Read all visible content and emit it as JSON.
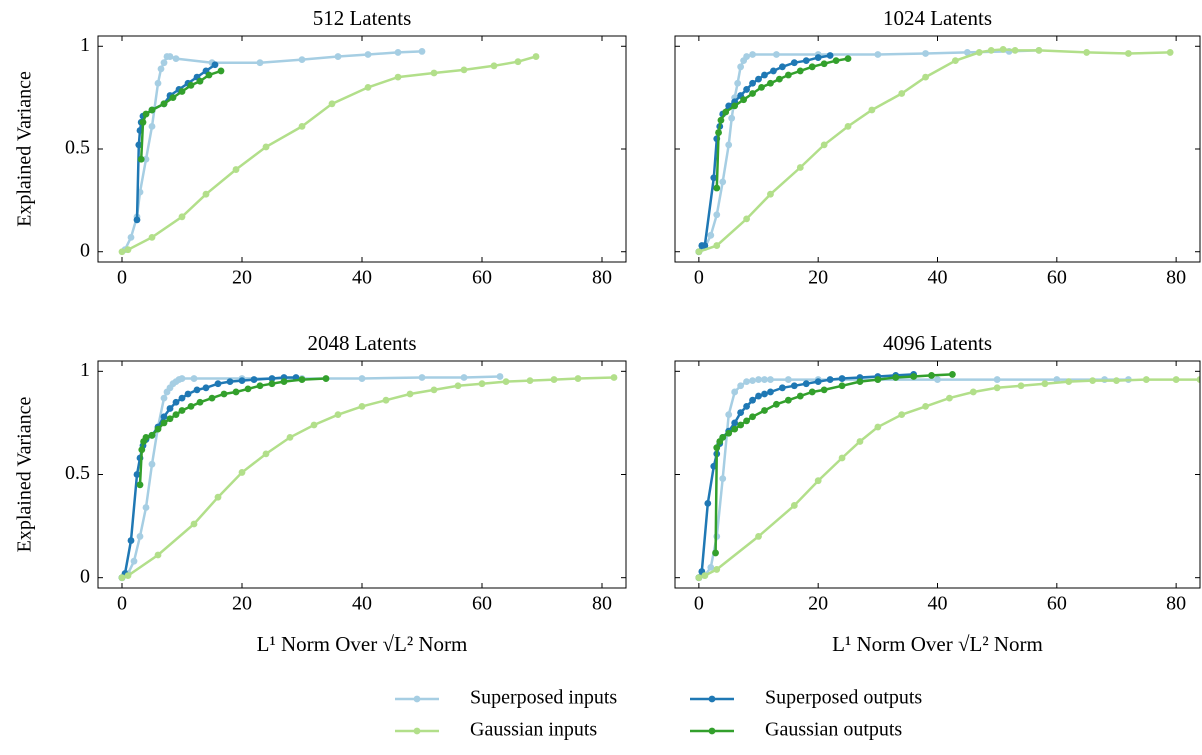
{
  "chart_data": [
    {
      "type": "line",
      "title": "512 Latents",
      "ylabel": "Explained Variance",
      "xlim": [
        -4,
        84
      ],
      "ylim": [
        -0.05,
        1.05
      ],
      "xticks": [
        0,
        20,
        40,
        60,
        80
      ],
      "yticks": [
        0,
        0.5,
        1
      ],
      "show_ytick_labels": true,
      "series": [
        {
          "name": "Superposed inputs",
          "color": "#a6cee3",
          "x": [
            0.5,
            1.5,
            2.5,
            3,
            4,
            5,
            6,
            6.5,
            7,
            7.5,
            8,
            9,
            15,
            23,
            30,
            36,
            41,
            46,
            50
          ],
          "values": [
            0.01,
            0.07,
            0.17,
            0.29,
            0.45,
            0.61,
            0.82,
            0.89,
            0.92,
            0.95,
            0.95,
            0.94,
            0.92,
            0.92,
            0.935,
            0.95,
            0.96,
            0.97,
            0.975
          ]
        },
        {
          "name": "Superposed outputs",
          "color": "#1f78b4",
          "x": [
            2.5,
            2.8,
            3,
            3.2,
            3.5,
            5,
            7,
            8,
            9.5,
            11,
            12.5,
            14,
            15.5
          ],
          "values": [
            0.155,
            0.52,
            0.59,
            0.63,
            0.66,
            0.69,
            0.72,
            0.76,
            0.79,
            0.82,
            0.85,
            0.88,
            0.91
          ]
        },
        {
          "name": "Gaussian inputs",
          "color": "#b2df8a",
          "x": [
            0,
            1,
            5,
            10,
            14,
            19,
            24,
            30,
            35,
            41,
            46,
            52,
            57,
            62,
            66,
            69
          ],
          "values": [
            0,
            0.01,
            0.07,
            0.17,
            0.28,
            0.4,
            0.51,
            0.61,
            0.72,
            0.8,
            0.85,
            0.87,
            0.885,
            0.905,
            0.925,
            0.95
          ]
        },
        {
          "name": "Gaussian outputs",
          "color": "#33a02c",
          "x": [
            3.2,
            3.5,
            4,
            5,
            7,
            8.5,
            10,
            11.5,
            13,
            14.5,
            16.5
          ],
          "values": [
            0.45,
            0.63,
            0.67,
            0.69,
            0.72,
            0.75,
            0.78,
            0.81,
            0.83,
            0.86,
            0.88
          ]
        }
      ]
    },
    {
      "type": "line",
      "title": "1024 Latents",
      "xlim": [
        -4,
        84
      ],
      "ylim": [
        -0.05,
        1.05
      ],
      "xticks": [
        0,
        20,
        40,
        60,
        80
      ],
      "yticks": [
        0,
        0.5,
        1
      ],
      "show_ytick_labels": false,
      "series": [
        {
          "color": "#a6cee3",
          "x": [
            0,
            1,
            2,
            3,
            4,
            5,
            5.5,
            6,
            6.5,
            7,
            7.5,
            8,
            9,
            13,
            20,
            30,
            38,
            45,
            52,
            57
          ],
          "values": [
            0,
            0.02,
            0.08,
            0.18,
            0.34,
            0.52,
            0.65,
            0.75,
            0.82,
            0.9,
            0.93,
            0.95,
            0.96,
            0.96,
            0.96,
            0.96,
            0.965,
            0.97,
            0.975,
            0.98
          ]
        },
        {
          "color": "#1f78b4",
          "x": [
            0,
            0.5,
            1,
            2.5,
            3,
            3.5,
            4,
            5,
            6,
            7,
            8,
            9,
            10,
            11,
            12.5,
            14,
            16,
            18,
            20,
            22
          ],
          "values": [
            0,
            0.03,
            0.03,
            0.36,
            0.55,
            0.61,
            0.67,
            0.71,
            0.73,
            0.76,
            0.79,
            0.82,
            0.84,
            0.86,
            0.88,
            0.9,
            0.92,
            0.93,
            0.945,
            0.955
          ]
        },
        {
          "color": "#b2df8a",
          "x": [
            0,
            3,
            8,
            12,
            17,
            21,
            25,
            29,
            34,
            38,
            43,
            47,
            49,
            51,
            53,
            57,
            65,
            72,
            79
          ],
          "values": [
            0,
            0.03,
            0.16,
            0.28,
            0.41,
            0.52,
            0.61,
            0.69,
            0.77,
            0.85,
            0.93,
            0.97,
            0.98,
            0.985,
            0.98,
            0.98,
            0.97,
            0.965,
            0.97
          ]
        },
        {
          "color": "#33a02c",
          "x": [
            3,
            3.3,
            3.7,
            4.5,
            6,
            7.5,
            9,
            10.5,
            12,
            13.5,
            15,
            17,
            19,
            21,
            23,
            25
          ],
          "values": [
            0.31,
            0.58,
            0.64,
            0.68,
            0.71,
            0.74,
            0.77,
            0.8,
            0.82,
            0.84,
            0.86,
            0.88,
            0.9,
            0.915,
            0.93,
            0.94
          ]
        }
      ]
    },
    {
      "type": "line",
      "title": "2048 Latents",
      "ylabel": "Explained Variance",
      "xlabel": "L¹ Norm Over √L² Norm",
      "xlim": [
        -4,
        84
      ],
      "ylim": [
        -0.05,
        1.05
      ],
      "xticks": [
        0,
        20,
        40,
        60,
        80
      ],
      "yticks": [
        0,
        0.5,
        1
      ],
      "show_ytick_labels": true,
      "series": [
        {
          "color": "#a6cee3",
          "x": [
            0,
            1,
            2,
            3,
            4,
            5,
            6,
            7,
            7.5,
            8,
            8.5,
            9,
            9.5,
            10,
            12,
            20,
            30,
            40,
            50,
            57,
            63
          ],
          "values": [
            0,
            0.02,
            0.08,
            0.2,
            0.34,
            0.55,
            0.73,
            0.87,
            0.9,
            0.92,
            0.94,
            0.95,
            0.96,
            0.965,
            0.965,
            0.965,
            0.965,
            0.965,
            0.97,
            0.97,
            0.975
          ]
        },
        {
          "color": "#1f78b4",
          "x": [
            0,
            0.5,
            1.5,
            2.5,
            3,
            3.5,
            4,
            5,
            6,
            7,
            8,
            9,
            10,
            11,
            12.5,
            14,
            16,
            18,
            20,
            22,
            25,
            27,
            29
          ],
          "values": [
            0,
            0.02,
            0.18,
            0.5,
            0.58,
            0.64,
            0.67,
            0.69,
            0.73,
            0.78,
            0.82,
            0.85,
            0.87,
            0.89,
            0.91,
            0.92,
            0.94,
            0.95,
            0.955,
            0.96,
            0.965,
            0.97,
            0.97
          ]
        },
        {
          "color": "#b2df8a",
          "x": [
            0,
            1,
            6,
            12,
            16,
            20,
            24,
            28,
            32,
            36,
            40,
            44,
            48,
            52,
            56,
            60,
            64,
            68,
            72,
            76,
            82
          ],
          "values": [
            0,
            0.01,
            0.11,
            0.26,
            0.39,
            0.51,
            0.6,
            0.68,
            0.74,
            0.79,
            0.83,
            0.86,
            0.89,
            0.91,
            0.93,
            0.94,
            0.95,
            0.955,
            0.96,
            0.965,
            0.97
          ]
        },
        {
          "color": "#33a02c",
          "x": [
            3,
            3.3,
            3.6,
            4,
            5,
            6,
            7,
            8,
            9,
            10,
            11.5,
            13,
            15,
            17,
            19,
            21,
            23,
            25,
            27,
            30,
            34
          ],
          "values": [
            0.45,
            0.62,
            0.66,
            0.68,
            0.69,
            0.72,
            0.75,
            0.77,
            0.79,
            0.81,
            0.83,
            0.85,
            0.87,
            0.89,
            0.9,
            0.915,
            0.93,
            0.94,
            0.95,
            0.96,
            0.965
          ]
        }
      ]
    },
    {
      "type": "line",
      "title": "4096 Latents",
      "xlabel": "L¹ Norm Over √L² Norm",
      "xlim": [
        -4,
        84
      ],
      "ylim": [
        -0.05,
        1.05
      ],
      "xticks": [
        0,
        20,
        40,
        60,
        80
      ],
      "yticks": [
        0,
        0.5,
        1
      ],
      "show_ytick_labels": false,
      "series": [
        {
          "color": "#a6cee3",
          "x": [
            0,
            1,
            2,
            3,
            4,
            5,
            6,
            7,
            8,
            9,
            10,
            11,
            12,
            15,
            20,
            30,
            40,
            50,
            60,
            68,
            72
          ],
          "values": [
            0,
            0.01,
            0.05,
            0.2,
            0.48,
            0.79,
            0.9,
            0.93,
            0.95,
            0.955,
            0.96,
            0.96,
            0.96,
            0.96,
            0.96,
            0.96,
            0.96,
            0.96,
            0.96,
            0.96,
            0.96
          ]
        },
        {
          "color": "#1f78b4",
          "x": [
            0,
            0.5,
            1.5,
            2.5,
            3,
            3.5,
            4,
            5,
            6,
            7,
            8,
            9,
            10,
            11,
            12,
            14,
            16,
            18,
            20,
            22,
            24,
            27,
            30,
            33,
            36
          ],
          "values": [
            0,
            0.03,
            0.36,
            0.54,
            0.6,
            0.65,
            0.68,
            0.71,
            0.75,
            0.8,
            0.83,
            0.86,
            0.88,
            0.89,
            0.9,
            0.92,
            0.93,
            0.94,
            0.95,
            0.96,
            0.965,
            0.97,
            0.975,
            0.98,
            0.985
          ]
        },
        {
          "color": "#b2df8a",
          "x": [
            0,
            1,
            3,
            10,
            16,
            20,
            24,
            27,
            30,
            34,
            38,
            42,
            46,
            50,
            54,
            58,
            62,
            66,
            70,
            75,
            80,
            84
          ],
          "values": [
            0,
            0.01,
            0.04,
            0.2,
            0.35,
            0.47,
            0.58,
            0.66,
            0.73,
            0.79,
            0.83,
            0.87,
            0.9,
            0.92,
            0.93,
            0.94,
            0.95,
            0.955,
            0.955,
            0.96,
            0.96,
            0.96
          ]
        },
        {
          "color": "#33a02c",
          "x": [
            2.8,
            3,
            3.5,
            4,
            5,
            6,
            7,
            8,
            9,
            11,
            13,
            15,
            17,
            19,
            21,
            24,
            27,
            30,
            33,
            36,
            39,
            42.5
          ],
          "values": [
            0.12,
            0.63,
            0.66,
            0.68,
            0.7,
            0.72,
            0.74,
            0.76,
            0.78,
            0.81,
            0.84,
            0.86,
            0.88,
            0.9,
            0.91,
            0.93,
            0.95,
            0.96,
            0.97,
            0.975,
            0.98,
            0.985
          ]
        }
      ]
    }
  ]
}
